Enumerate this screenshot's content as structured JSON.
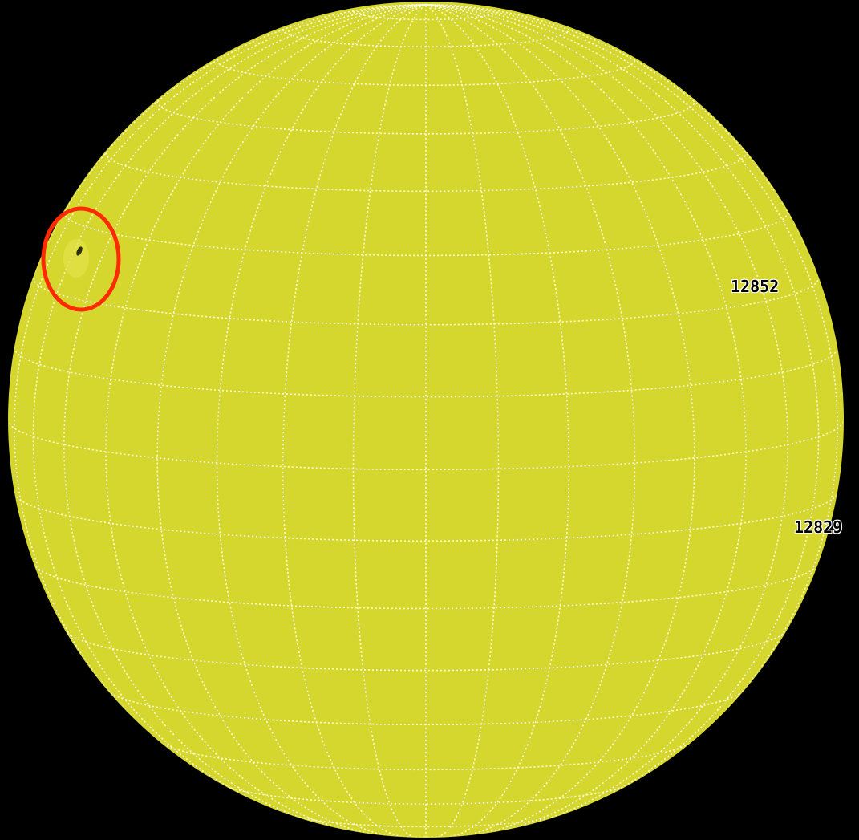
{
  "image": {
    "background_color": "#000000",
    "disk_color": "#d6d72e",
    "grid_color": "#ffffff",
    "highlight_color": "#ff2a00",
    "sunspot_color": "#2b2f10",
    "subject": "sun-disk-icon",
    "highlight_marker": "circle-icon"
  },
  "regions": [
    {
      "id": "region-a",
      "label": "12852"
    },
    {
      "id": "region-b",
      "label": "12829"
    }
  ]
}
